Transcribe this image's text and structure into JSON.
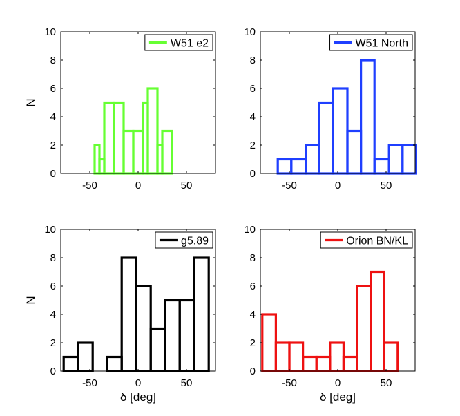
{
  "chart_data": [
    {
      "type": "bar",
      "histogram": true,
      "legend": "W51 e2",
      "legend_position": "top-right",
      "color": "#66ff33",
      "xlabel": "",
      "ylabel": "N",
      "xlim": [
        -80,
        80
      ],
      "ylim": [
        0,
        10
      ],
      "xticks": [
        -50,
        0,
        50
      ],
      "yticks": [
        0,
        2,
        4,
        6,
        8,
        10
      ],
      "bins": [
        {
          "x0": -45,
          "x1": -40,
          "value": 2
        },
        {
          "x0": -40,
          "x1": -35,
          "value": 1
        },
        {
          "x0": -35,
          "x1": -25,
          "value": 5
        },
        {
          "x0": -25,
          "x1": -15,
          "value": 5
        },
        {
          "x0": -15,
          "x1": -5,
          "value": 3
        },
        {
          "x0": -5,
          "x1": 5,
          "value": 3
        },
        {
          "x0": 5,
          "x1": 10,
          "value": 5
        },
        {
          "x0": 10,
          "x1": 20,
          "value": 6
        },
        {
          "x0": 20,
          "x1": 25,
          "value": 2
        },
        {
          "x0": 25,
          "x1": 35,
          "value": 3
        }
      ]
    },
    {
      "type": "bar",
      "histogram": true,
      "legend": "W51 North",
      "legend_position": "top-right",
      "color": "#1f3fff",
      "xlabel": "",
      "ylabel": "",
      "xlim": [
        -80,
        80
      ],
      "ylim": [
        0,
        10
      ],
      "xticks": [
        -50,
        0,
        50
      ],
      "yticks": [
        0,
        2,
        4,
        6,
        8,
        10
      ],
      "bins": [
        {
          "x0": -62,
          "x1": -48,
          "value": 1
        },
        {
          "x0": -48,
          "x1": -33,
          "value": 1
        },
        {
          "x0": -33,
          "x1": -19,
          "value": 2
        },
        {
          "x0": -19,
          "x1": -5,
          "value": 5
        },
        {
          "x0": -5,
          "x1": 10,
          "value": 6
        },
        {
          "x0": 10,
          "x1": 24,
          "value": 3
        },
        {
          "x0": 24,
          "x1": 38,
          "value": 8
        },
        {
          "x0": 38,
          "x1": 53,
          "value": 1
        },
        {
          "x0": 53,
          "x1": 67,
          "value": 2
        },
        {
          "x0": 67,
          "x1": 81,
          "value": 2
        }
      ]
    },
    {
      "type": "bar",
      "histogram": true,
      "legend": "g5.89",
      "legend_position": "top-right",
      "color": "#000000",
      "xlabel": "δ [deg]",
      "ylabel": "N",
      "xlim": [
        -80,
        80
      ],
      "ylim": [
        0,
        10
      ],
      "xticks": [
        -50,
        0,
        50
      ],
      "yticks": [
        0,
        2,
        4,
        6,
        8,
        10
      ],
      "bins": [
        {
          "x0": -77,
          "x1": -62,
          "value": 1
        },
        {
          "x0": -62,
          "x1": -47,
          "value": 2
        },
        {
          "x0": -47,
          "x1": -32,
          "value": 0
        },
        {
          "x0": -32,
          "x1": -17,
          "value": 1
        },
        {
          "x0": -17,
          "x1": -2,
          "value": 8
        },
        {
          "x0": -2,
          "x1": 13,
          "value": 6
        },
        {
          "x0": 13,
          "x1": 28,
          "value": 3
        },
        {
          "x0": 28,
          "x1": 43,
          "value": 5
        },
        {
          "x0": 43,
          "x1": 58,
          "value": 5
        },
        {
          "x0": 58,
          "x1": 73,
          "value": 8
        }
      ]
    },
    {
      "type": "bar",
      "histogram": true,
      "legend": "Orion BN/KL",
      "legend_position": "top-right",
      "color": "#ee1111",
      "xlabel": "δ [deg]",
      "ylabel": "",
      "xlim": [
        -80,
        80
      ],
      "ylim": [
        0,
        10
      ],
      "xticks": [
        -50,
        0,
        50
      ],
      "yticks": [
        0,
        2,
        4,
        6,
        8,
        10
      ],
      "bins": [
        {
          "x0": -78,
          "x1": -64,
          "value": 4
        },
        {
          "x0": -64,
          "x1": -50,
          "value": 2
        },
        {
          "x0": -50,
          "x1": -36,
          "value": 2
        },
        {
          "x0": -36,
          "x1": -22,
          "value": 1
        },
        {
          "x0": -22,
          "x1": -8,
          "value": 1
        },
        {
          "x0": -8,
          "x1": 6,
          "value": 2
        },
        {
          "x0": 6,
          "x1": 20,
          "value": 1
        },
        {
          "x0": 20,
          "x1": 34,
          "value": 6
        },
        {
          "x0": 34,
          "x1": 48,
          "value": 7
        },
        {
          "x0": 48,
          "x1": 62,
          "value": 2
        }
      ]
    }
  ]
}
